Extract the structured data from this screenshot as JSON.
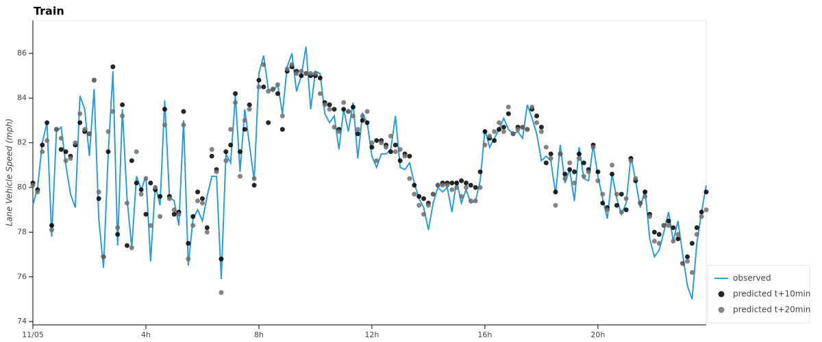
{
  "chart_data": {
    "type": "line",
    "title": "Train",
    "y_label": "Lane Vehicle Speed (mph)",
    "x": [
      0,
      10,
      20,
      30,
      40,
      50,
      60,
      70,
      80,
      90,
      100,
      110,
      120,
      130,
      140,
      150,
      160,
      170,
      180,
      190,
      200,
      210,
      220,
      230,
      240,
      250,
      260,
      270,
      280,
      290,
      300,
      310,
      320,
      330,
      340,
      350,
      360,
      370,
      380,
      390,
      400,
      410,
      420,
      430,
      440,
      450,
      460,
      470,
      480,
      490,
      500,
      510,
      520,
      530,
      540,
      550,
      560,
      570,
      580,
      590,
      600,
      610,
      620,
      630,
      640,
      650,
      660,
      670,
      680,
      690,
      700,
      710,
      720,
      730,
      740,
      750,
      760,
      770,
      780,
      790,
      800,
      810,
      820,
      830,
      840,
      850,
      860,
      870,
      880,
      890,
      900,
      910,
      920,
      930,
      940,
      950,
      960,
      970,
      980,
      990,
      1000,
      1010,
      1020,
      1030,
      1040,
      1050,
      1060,
      1070,
      1080,
      1090,
      1100,
      1110,
      1120,
      1130,
      1140,
      1150,
      1160,
      1170,
      1180,
      1190,
      1200,
      1210,
      1220,
      1230,
      1240,
      1250,
      1260,
      1270,
      1280,
      1290,
      1300,
      1310,
      1320,
      1330,
      1340,
      1350,
      1360,
      1370,
      1380,
      1390,
      1400,
      1410,
      1420,
      1430
    ],
    "series": [
      {
        "name": "observed",
        "type": "line",
        "color": "#2e9bd4",
        "values": [
          79.2,
          80.0,
          82.0,
          82.9,
          77.8,
          82.5,
          82.7,
          81.0,
          79.7,
          79.1,
          84.1,
          83.5,
          81.4,
          84.4,
          78.6,
          76.4,
          81.5,
          85.2,
          77.4,
          83.5,
          79.5,
          77.3,
          80.5,
          79.9,
          80.5,
          76.7,
          80.1,
          79.2,
          83.9,
          79.6,
          79.4,
          78.3,
          83.0,
          76.5,
          78.6,
          79.0,
          78.5,
          79.6,
          80.5,
          80.5,
          75.9,
          81.5,
          81.1,
          84.1,
          80.7,
          83.5,
          81.9,
          80.3,
          85.1,
          85.9,
          84.4,
          84.3,
          84.6,
          83.3,
          85.4,
          86.0,
          84.3,
          85.0,
          86.3,
          83.5,
          85.2,
          85.1,
          83.3,
          82.9,
          83.2,
          81.7,
          83.5,
          82.5,
          83.8,
          81.3,
          83.3,
          82.9,
          81.4,
          80.9,
          81.5,
          81.5,
          81.7,
          83.2,
          80.9,
          80.8,
          81.1,
          80.2,
          79.5,
          79.1,
          78.1,
          79.3,
          80.0,
          79.8,
          80.0,
          78.9,
          80.3,
          79.3,
          79.9,
          79.3,
          79.4,
          80.3,
          82.6,
          81.8,
          82.2,
          82.6,
          83.1,
          82.6,
          82.4,
          82.5,
          82.2,
          83.7,
          83.1,
          82.4,
          81.2,
          81.4,
          81.2,
          79.7,
          81.9,
          80.2,
          80.8,
          79.4,
          81.8,
          80.4,
          80.3,
          81.9,
          80.5,
          79.5,
          78.6,
          80.6,
          79.5,
          78.8,
          79.3,
          81.4,
          80.3,
          79.1,
          79.9,
          77.7,
          76.9,
          77.2,
          78.0,
          78.9,
          77.6,
          78.5,
          77.0,
          75.6,
          75.0,
          77.5,
          78.9,
          80.1
        ]
      },
      {
        "name": "predicted t+10min",
        "type": "scatter",
        "color": "#000000",
        "values": [
          80.2,
          79.9,
          81.9,
          82.9,
          78.3,
          82.6,
          81.7,
          81.6,
          81.4,
          81.9,
          82.9,
          82.5,
          82.4,
          84.8,
          79.5,
          76.9,
          81.6,
          85.4,
          77.9,
          83.7,
          77.4,
          81.2,
          80.2,
          79.9,
          78.8,
          80.2,
          79.9,
          79.6,
          83.5,
          79.6,
          78.8,
          78.9,
          83.4,
          77.5,
          78.7,
          79.8,
          79.5,
          78.2,
          81.4,
          80.8,
          76.8,
          81.6,
          81.9,
          84.2,
          81.6,
          82.6,
          83.7,
          80.1,
          84.8,
          84.5,
          82.9,
          84.4,
          84.2,
          82.6,
          85.2,
          85.4,
          85.2,
          85.0,
          85.1,
          85.0,
          85.0,
          84.9,
          83.8,
          83.7,
          83.5,
          82.6,
          83.5,
          83.4,
          83.6,
          82.4,
          83.0,
          82.9,
          81.8,
          82.1,
          82.1,
          81.9,
          81.6,
          81.9,
          81.2,
          81.5,
          81.4,
          80.1,
          79.6,
          79.5,
          79.3,
          79.7,
          80.1,
          80.2,
          80.2,
          80.2,
          80.2,
          80.3,
          80.2,
          80.1,
          80.0,
          80.7,
          82.5,
          82.2,
          82.1,
          82.6,
          82.7,
          83.3,
          82.4,
          82.7,
          82.7,
          82.6,
          83.5,
          83.2,
          82.7,
          81.1,
          81.5,
          79.8,
          81.5,
          80.6,
          80.8,
          80.7,
          81.5,
          81.1,
          80.8,
          81.9,
          80.7,
          79.3,
          79.1,
          80.6,
          79.2,
          79.7,
          79.0,
          81.3,
          80.3,
          79.3,
          79.8,
          78.8,
          78.0,
          77.9,
          78.3,
          78.5,
          78.2,
          77.7,
          76.6,
          76.9,
          77.5,
          78.2,
          78.9,
          79.8
        ]
      },
      {
        "name": "predicted t+20min",
        "type": "scatter",
        "color": "#6e6e6e",
        "values": [
          80.1,
          79.8,
          81.6,
          82.1,
          78.1,
          82.6,
          82.2,
          81.2,
          81.3,
          82.0,
          83.3,
          82.6,
          82.4,
          84.8,
          79.8,
          76.9,
          82.5,
          83.4,
          78.2,
          83.2,
          79.3,
          77.3,
          81.6,
          79.7,
          80.4,
          78.3,
          80.0,
          78.7,
          82.8,
          79.5,
          79.0,
          78.8,
          82.8,
          76.8,
          78.3,
          79.4,
          79.3,
          78.0,
          81.7,
          80.7,
          75.3,
          81.2,
          82.6,
          83.8,
          80.5,
          83.0,
          83.5,
          80.4,
          84.5,
          85.5,
          84.3,
          84.4,
          84.6,
          83.2,
          85.3,
          85.5,
          85.1,
          85.2,
          85.1,
          85.1,
          85.1,
          84.2,
          83.7,
          83.5,
          82.7,
          82.5,
          83.8,
          83.4,
          83.2,
          82.6,
          83.2,
          83.4,
          82.0,
          81.2,
          82.0,
          81.8,
          82.3,
          81.6,
          81.7,
          81.4,
          80.4,
          79.7,
          79.2,
          78.8,
          79.2,
          79.7,
          80.1,
          80.1,
          80.1,
          79.9,
          80.0,
          79.6,
          80.0,
          79.4,
          79.4,
          80.0,
          81.9,
          82.3,
          82.5,
          82.9,
          82.5,
          83.6,
          82.4,
          82.6,
          82.7,
          82.6,
          83.6,
          82.9,
          82.5,
          81.8,
          81.3,
          79.2,
          81.5,
          80.4,
          81.1,
          80.2,
          81.3,
          80.5,
          80.7,
          81.8,
          80.3,
          79.7,
          79.0,
          81.0,
          79.7,
          78.9,
          79.5,
          81.2,
          80.4,
          79.3,
          79.6,
          78.7,
          77.6,
          77.5,
          78.3,
          78.3,
          77.6,
          77.9,
          76.6,
          76.7,
          76.2,
          77.9,
          78.7,
          79.0
        ]
      }
    ],
    "xlim": [
      0,
      1430
    ],
    "xticks": [
      {
        "value": 0,
        "label": "11/05"
      },
      {
        "value": 240,
        "label": "4h"
      },
      {
        "value": 480,
        "label": "8h"
      },
      {
        "value": 720,
        "label": "12h"
      },
      {
        "value": 960,
        "label": "16h"
      },
      {
        "value": 1200,
        "label": "20h"
      }
    ],
    "ylim": [
      73.85,
      87.47
    ],
    "yticks": [
      74,
      76,
      78,
      80,
      82,
      84,
      86
    ],
    "legend": "bottom-right"
  }
}
